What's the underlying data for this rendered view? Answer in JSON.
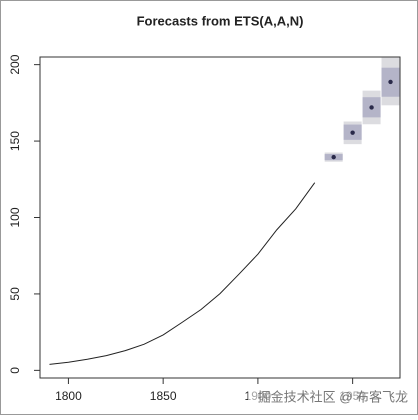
{
  "chart_data": {
    "type": "line",
    "title": "Forecasts from ETS(A,A,N)",
    "x": [
      1790,
      1800,
      1810,
      1820,
      1830,
      1840,
      1850,
      1860,
      1870,
      1880,
      1890,
      1900,
      1910,
      1920,
      1930
    ],
    "values": [
      3.93,
      5.31,
      7.24,
      9.64,
      12.9,
      17.1,
      23.2,
      31.4,
      39.8,
      50.2,
      62.9,
      76.0,
      92.0,
      105.7,
      122.8
    ],
    "color": "#222222",
    "forecast": {
      "x": [
        1940,
        1950,
        1960,
        1970
      ],
      "mean": [
        139.5,
        155.5,
        172,
        188.7
      ],
      "lo80": [
        137.5,
        150.8,
        165.5,
        179
      ],
      "hi80": [
        141.5,
        160.8,
        178.7,
        198
      ],
      "lo95": [
        136.5,
        148,
        161,
        173.4
      ],
      "hi95": [
        142.5,
        162.8,
        183,
        204.6
      ],
      "color80": "#b4b4c8",
      "color95": "#dcdce0",
      "point_color": "#2a2a4a"
    },
    "xlim": [
      1785,
      1975
    ],
    "ylim": [
      -5,
      205
    ],
    "xticks": [
      1800,
      1850,
      1900,
      1950
    ],
    "yticks": [
      0,
      50,
      100,
      150,
      200
    ],
    "watermark": "掘金技术社区 @ 布客飞龙"
  }
}
